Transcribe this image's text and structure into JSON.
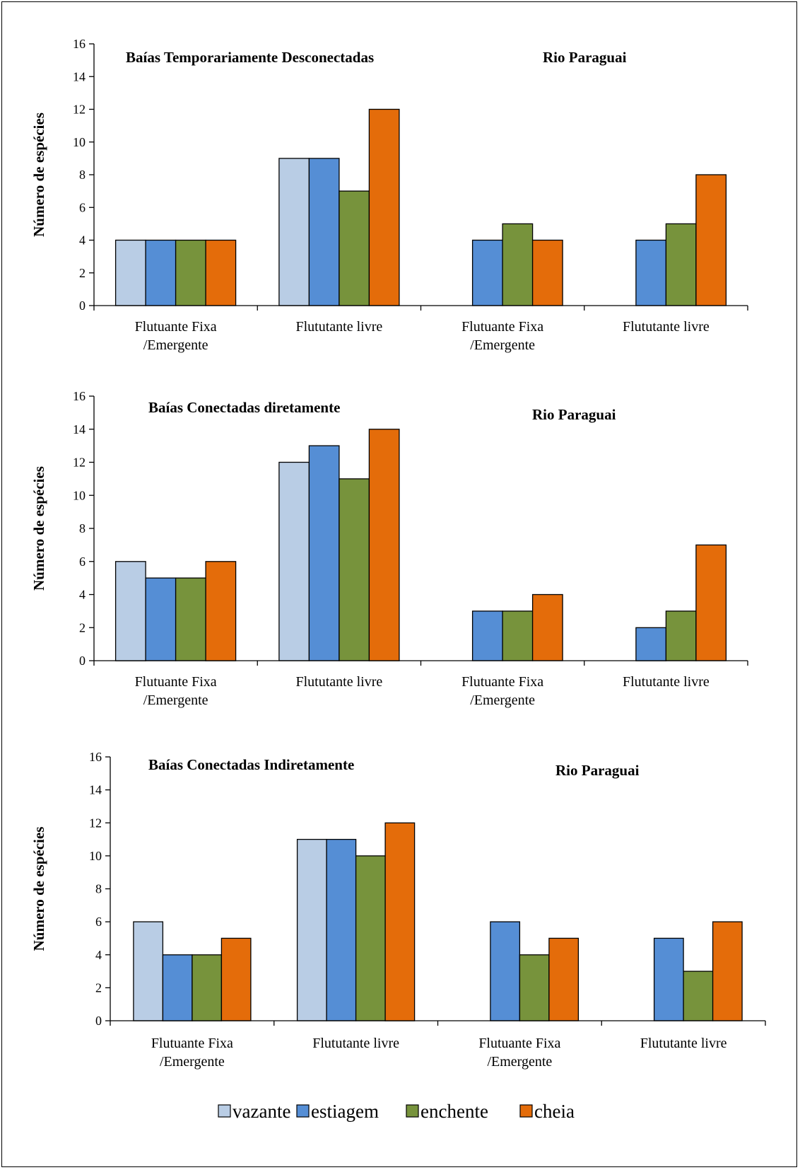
{
  "colors": {
    "vazante": "#b9cde5",
    "estiagem": "#558ed5",
    "enchente": "#77933c",
    "cheia": "#e46c0a"
  },
  "legend": [
    {
      "key": "vazante",
      "label": "vazante"
    },
    {
      "key": "estiagem",
      "label": "estiagem"
    },
    {
      "key": "enchente",
      "label": "enchente"
    },
    {
      "key": "cheia",
      "label": "cheia"
    }
  ],
  "chart_data": [
    {
      "type": "bar",
      "titles": [
        "Baías Temporariamente Desconectadas",
        "Rio Paraguai"
      ],
      "ylabel": "Número de espécies",
      "ylim": [
        0,
        16
      ],
      "yticks": [
        0,
        2,
        4,
        6,
        8,
        10,
        12,
        14,
        16
      ],
      "categories": [
        [
          "Flutuante Fixa",
          "/Emergente"
        ],
        [
          "Flututante livre"
        ],
        [
          "Flutuante Fixa",
          "/Emergente"
        ],
        [
          "Flututante livre"
        ]
      ],
      "series": [
        {
          "name": "vazante",
          "values": [
            4,
            9,
            null,
            null
          ]
        },
        {
          "name": "estiagem",
          "values": [
            4,
            9,
            4,
            4
          ]
        },
        {
          "name": "enchente",
          "values": [
            4,
            7,
            5,
            5
          ]
        },
        {
          "name": "cheia",
          "values": [
            4,
            12,
            4,
            8
          ]
        }
      ]
    },
    {
      "type": "bar",
      "titles": [
        "Baías Conectadas diretamente",
        "Rio Paraguai"
      ],
      "ylabel": "Número de espécies",
      "ylim": [
        0,
        16
      ],
      "yticks": [
        0,
        2,
        4,
        6,
        8,
        10,
        12,
        14,
        16
      ],
      "categories": [
        [
          "Flutuante Fixa",
          "/Emergente"
        ],
        [
          "Flututante livre"
        ],
        [
          "Flutuante Fixa",
          "/Emergente"
        ],
        [
          "Flututante livre"
        ]
      ],
      "series": [
        {
          "name": "vazante",
          "values": [
            6,
            12,
            null,
            null
          ]
        },
        {
          "name": "estiagem",
          "values": [
            5,
            13,
            3,
            2
          ]
        },
        {
          "name": "enchente",
          "values": [
            5,
            11,
            3,
            3
          ]
        },
        {
          "name": "cheia",
          "values": [
            6,
            14,
            4,
            7
          ]
        }
      ]
    },
    {
      "type": "bar",
      "titles": [
        "Baías Conectadas Indiretamente",
        "Rio Paraguai"
      ],
      "ylabel": "Número de espécies",
      "ylim": [
        0,
        16
      ],
      "yticks": [
        0,
        2,
        4,
        6,
        8,
        10,
        12,
        14,
        16
      ],
      "categories": [
        [
          "Flutuante Fixa",
          "/Emergente"
        ],
        [
          "Flututante livre"
        ],
        [
          "Flutuante Fixa",
          "/Emergente"
        ],
        [
          "Flututante livre"
        ]
      ],
      "series": [
        {
          "name": "vazante",
          "values": [
            6,
            11,
            null,
            null
          ]
        },
        {
          "name": "estiagem",
          "values": [
            4,
            11,
            6,
            5
          ]
        },
        {
          "name": "enchente",
          "values": [
            4,
            10,
            4,
            3
          ]
        },
        {
          "name": "cheia",
          "values": [
            5,
            12,
            5,
            6
          ]
        }
      ]
    }
  ]
}
